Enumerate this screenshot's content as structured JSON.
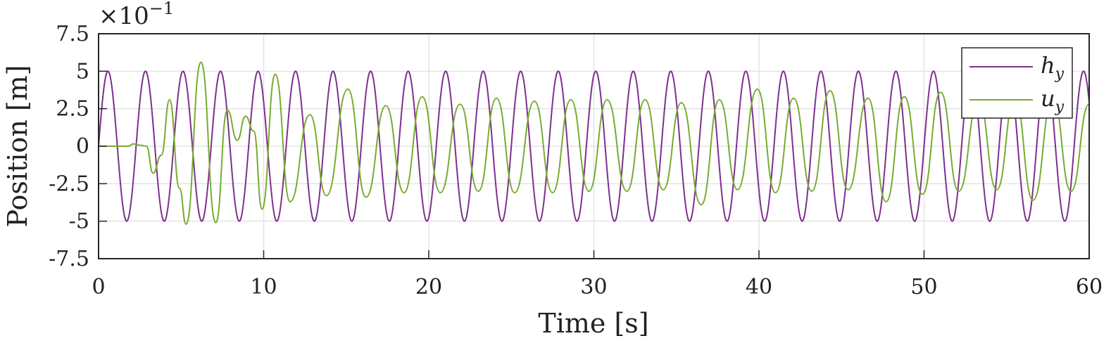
{
  "chart_data": {
    "type": "line",
    "xlabel": "Time [s]",
    "ylabel": "Position [m]",
    "y_exponent_label": "×10",
    "y_exponent_power": "−1",
    "xlim": [
      0,
      60
    ],
    "ylim": [
      -7.5,
      7.5
    ],
    "x_ticks": [
      0,
      10,
      20,
      30,
      40,
      50,
      60
    ],
    "x_tick_labels": [
      "0",
      "10",
      "20",
      "30",
      "40",
      "50",
      "60"
    ],
    "y_ticks": [
      7.5,
      5,
      2.5,
      0,
      -2.5,
      -5,
      -7.5
    ],
    "y_tick_labels": [
      "7.5",
      "5",
      "2.5",
      "0",
      "-2.5",
      "-5",
      "-7.5"
    ],
    "grid": true,
    "legend_position": "top-right",
    "legend": [
      {
        "symbol": "h",
        "subscript": "y"
      },
      {
        "symbol": "u",
        "subscript": "y"
      }
    ],
    "series": [
      {
        "key": "h_y",
        "color": "#7E2F8E",
        "form": "sinusoid",
        "amplitude": 5,
        "frequency_hz": 0.44,
        "phase_rad": 0
      },
      {
        "key": "u_y",
        "color": "#77AC30",
        "points": [
          [
            0,
            0
          ],
          [
            1.8,
            0
          ],
          [
            2.1,
            0.15
          ],
          [
            2.6,
            0.05
          ],
          [
            2.9,
            0
          ],
          [
            3.3,
            -1.8
          ],
          [
            3.8,
            -0.6
          ],
          [
            4.3,
            3.1
          ],
          [
            4.9,
            -2.8
          ],
          [
            5.3,
            -5.2
          ],
          [
            6.2,
            5.6
          ],
          [
            7.1,
            -5.1
          ],
          [
            7.8,
            2.4
          ],
          [
            8.4,
            0.4
          ],
          [
            8.9,
            2.0
          ],
          [
            9.4,
            1.0
          ],
          [
            9.9,
            -4.2
          ],
          [
            10.7,
            4.8
          ],
          [
            11.6,
            -3.7
          ],
          [
            12.8,
            2.1
          ],
          [
            13.8,
            -3.3
          ],
          [
            15.1,
            3.8
          ],
          [
            16.2,
            -3.4
          ],
          [
            17.4,
            2.7
          ],
          [
            18.5,
            -3.1
          ],
          [
            19.6,
            3.3
          ],
          [
            20.7,
            -3.1
          ],
          [
            21.9,
            2.8
          ],
          [
            23.0,
            -3.0
          ],
          [
            24.1,
            3.2
          ],
          [
            25.2,
            -3.1
          ],
          [
            26.4,
            3.0
          ],
          [
            27.5,
            -3.1
          ],
          [
            28.6,
            3.1
          ],
          [
            29.7,
            -3.0
          ],
          [
            30.8,
            3.1
          ],
          [
            32.0,
            -3.0
          ],
          [
            33.1,
            3.1
          ],
          [
            34.2,
            -2.9
          ],
          [
            35.3,
            2.9
          ],
          [
            36.5,
            -3.9
          ],
          [
            37.6,
            3.1
          ],
          [
            38.7,
            -2.9
          ],
          [
            39.9,
            3.8
          ],
          [
            41.0,
            -3.1
          ],
          [
            42.1,
            3.2
          ],
          [
            43.2,
            -3.0
          ],
          [
            44.3,
            3.7
          ],
          [
            45.4,
            -2.9
          ],
          [
            46.6,
            3.2
          ],
          [
            47.7,
            -3.7
          ],
          [
            48.8,
            3.3
          ],
          [
            49.9,
            -3.2
          ],
          [
            51.0,
            3.6
          ],
          [
            52.1,
            -3.0
          ],
          [
            53.3,
            3.1
          ],
          [
            54.4,
            -2.9
          ],
          [
            55.5,
            3.2
          ],
          [
            56.6,
            -3.6
          ],
          [
            57.8,
            3.2
          ],
          [
            58.9,
            -3.0
          ],
          [
            60,
            2.8
          ]
        ]
      }
    ]
  }
}
